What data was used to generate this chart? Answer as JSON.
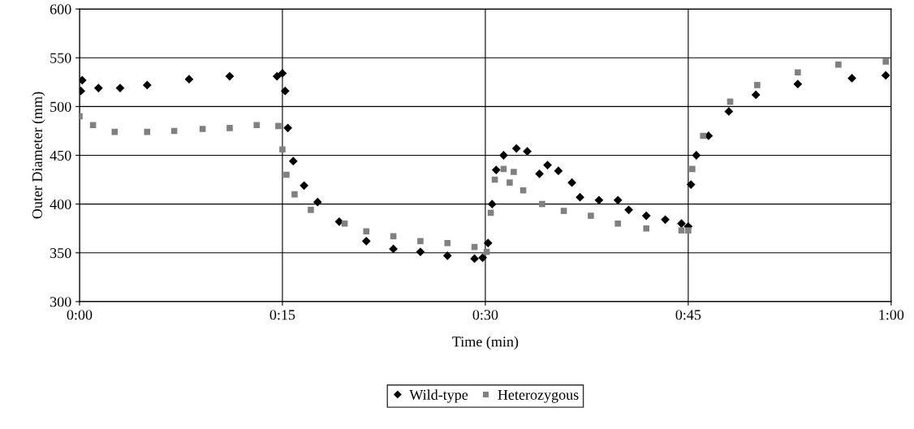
{
  "chart_data": {
    "type": "scatter",
    "xlabel": "Time (min)",
    "ylabel": "Outer Diameter (mm)",
    "xlim": [
      0,
      60
    ],
    "xticks": [
      {
        "value": 0,
        "label": "0:00"
      },
      {
        "value": 15,
        "label": "0:15"
      },
      {
        "value": 30,
        "label": "0:30"
      },
      {
        "value": 45,
        "label": "0:45"
      },
      {
        "value": 60,
        "label": "1:00"
      }
    ],
    "ylim": [
      300,
      600
    ],
    "yticks": [
      300,
      350,
      400,
      450,
      500,
      550,
      600
    ],
    "grid": true,
    "legend": "bottom",
    "series": [
      {
        "name": "Wild-type",
        "color": "#000000",
        "marker": "diamond",
        "x": [
          0.1,
          0.2,
          1.4,
          3.0,
          5.0,
          8.1,
          11.1,
          14.6,
          15.0,
          15.2,
          15.4,
          15.8,
          16.6,
          17.6,
          19.2,
          21.2,
          23.2,
          25.2,
          27.2,
          29.2,
          29.8,
          30.2,
          30.5,
          30.8,
          31.35,
          32.3,
          33.1,
          34.0,
          34.6,
          35.4,
          36.4,
          37.0,
          38.4,
          39.8,
          40.6,
          41.9,
          43.3,
          44.5,
          45.0,
          45.2,
          45.6,
          46.5,
          48.0,
          50.0,
          53.1,
          57.1,
          59.6
        ],
        "values": [
          516,
          527,
          519,
          519,
          522,
          528,
          531,
          531,
          534,
          516,
          478,
          444,
          419,
          402,
          382,
          362,
          354,
          351,
          347,
          344,
          345,
          360,
          400,
          435,
          450,
          457,
          454,
          431,
          440,
          434,
          422,
          407,
          404,
          404,
          394,
          388,
          384,
          380,
          377,
          420,
          450,
          470,
          495,
          512,
          523,
          529,
          532
        ]
      },
      {
        "name": "Heterozygous",
        "color": "#808080",
        "marker": "square",
        "x": [
          0.0,
          1.0,
          2.6,
          5.0,
          7.0,
          9.1,
          11.1,
          13.1,
          14.7,
          15.0,
          15.3,
          15.9,
          17.1,
          19.6,
          21.2,
          23.2,
          25.2,
          27.2,
          29.2,
          30.1,
          30.4,
          30.7,
          31.35,
          31.8,
          32.1,
          32.8,
          34.2,
          35.8,
          37.8,
          39.8,
          41.9,
          44.5,
          45.0,
          45.3,
          46.1,
          48.1,
          50.1,
          53.1,
          56.1,
          59.6
        ],
        "values": [
          490,
          481,
          474,
          474,
          475,
          477,
          478,
          481,
          480,
          456,
          430,
          410,
          394,
          380,
          372,
          367,
          362,
          360,
          356,
          351,
          391,
          425,
          436,
          422,
          433,
          414,
          400,
          393,
          388,
          380,
          375,
          373,
          373,
          436,
          470,
          505,
          522,
          535,
          543,
          546
        ]
      }
    ]
  }
}
